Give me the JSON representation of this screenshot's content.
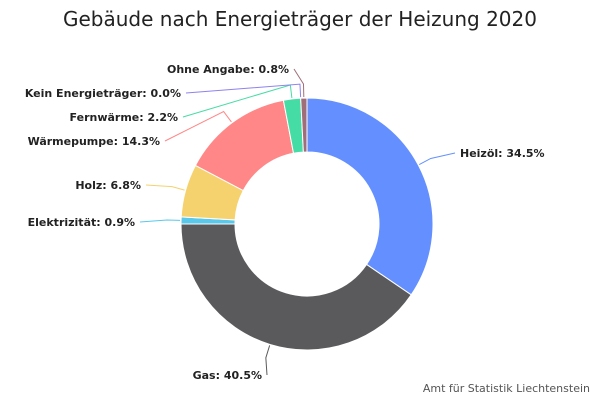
{
  "chart_data": {
    "type": "pie",
    "variant": "donut",
    "title": "Gebäude nach Energieträger der Heizung 2020",
    "unit": "%",
    "slices": [
      {
        "name": "Heizöl",
        "value": 34.5,
        "label": "Heizöl: 34.5%",
        "color": "#6490ff"
      },
      {
        "name": "Gas",
        "value": 40.5,
        "label": "Gas: 40.5%",
        "color": "#5a5a5c"
      },
      {
        "name": "Elektrizität",
        "value": 0.9,
        "label": "Elektrizität: 0.9%",
        "color": "#5ac8eb"
      },
      {
        "name": "Holz",
        "value": 6.8,
        "label": "Holz: 6.8%",
        "color": "#f5d26e"
      },
      {
        "name": "Wärmepumpe",
        "value": 14.3,
        "label": "Wärmepumpe: 14.3%",
        "color": "#ff8787"
      },
      {
        "name": "Fernwärme",
        "value": 2.2,
        "label": "Fernwärme: 2.2%",
        "color": "#46dca5"
      },
      {
        "name": "Kein Energieträger",
        "value": 0.0,
        "label": "Kein Energieträger: 0.0%",
        "color": "#8c82f0"
      },
      {
        "name": "Ohne Angabe",
        "value": 0.8,
        "label": "Ohne Angabe: 0.8%",
        "color": "#a06e78"
      }
    ],
    "legend": "none"
  },
  "credits": "Amt für Statistik Liechtenstein"
}
